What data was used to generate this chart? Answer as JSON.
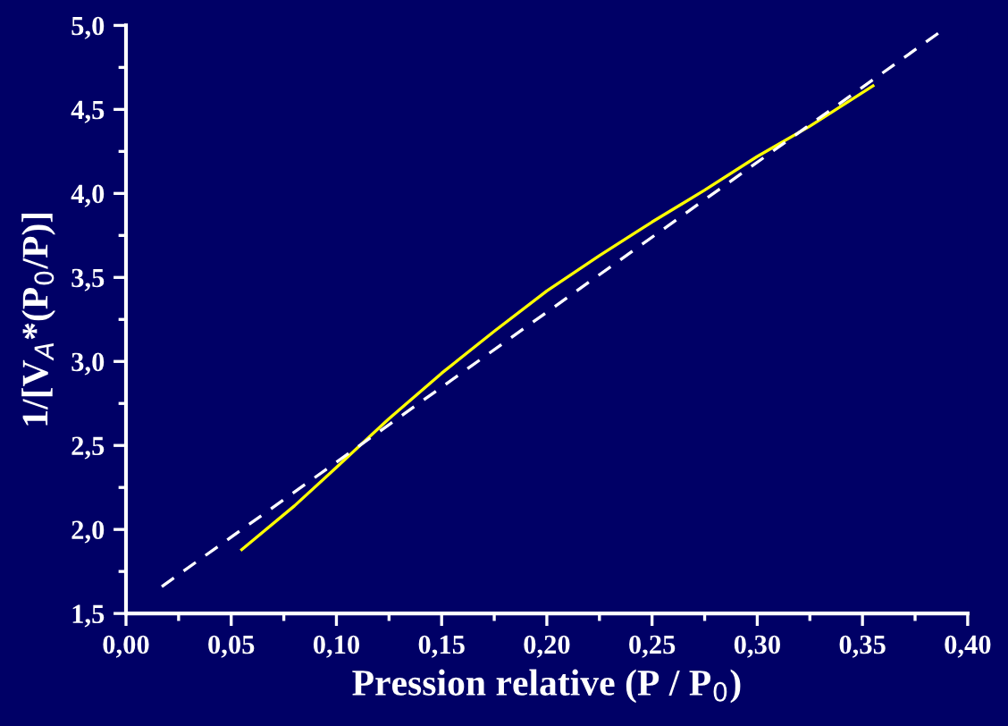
{
  "chart_data": {
    "type": "line",
    "xlabel": "Pression relative (P / P$_{0}$)",
    "ylabel": "1/[V$_{A}$*(P$_{0}$/P)]",
    "xlim": [
      0,
      0.4
    ],
    "ylim": [
      1.5,
      5.0
    ],
    "xticks": [
      {
        "value": 0,
        "label": "0,00"
      },
      {
        "value": 0.05,
        "label": "0,05"
      },
      {
        "value": 0.1,
        "label": "0,10"
      },
      {
        "value": 0.15,
        "label": "0,15"
      },
      {
        "value": 0.2,
        "label": "0,20"
      },
      {
        "value": 0.25,
        "label": "0,25"
      },
      {
        "value": 0.3,
        "label": "0,30"
      },
      {
        "value": 0.35,
        "label": "0,35"
      },
      {
        "value": 0.4,
        "label": "0,40"
      }
    ],
    "yticks": [
      {
        "value": 1.5,
        "label": "1,5"
      },
      {
        "value": 2.0,
        "label": "2,0"
      },
      {
        "value": 2.5,
        "label": "2,5"
      },
      {
        "value": 3.0,
        "label": "3,0"
      },
      {
        "value": 3.5,
        "label": "3,5"
      },
      {
        "value": 4.0,
        "label": "4,0"
      },
      {
        "value": 4.5,
        "label": "4,5"
      },
      {
        "value": 5.0,
        "label": "5,0"
      }
    ],
    "grid": false,
    "legend": false,
    "marker": "none",
    "series": [
      {
        "color": "#ffff00",
        "line_style": "solid",
        "x": [
          0.055,
          0.08,
          0.1,
          0.125,
          0.15,
          0.175,
          0.2,
          0.225,
          0.25,
          0.275,
          0.3,
          0.325,
          0.355
        ],
        "values": [
          1.88,
          2.14,
          2.37,
          2.66,
          2.93,
          3.18,
          3.42,
          3.63,
          3.83,
          4.02,
          4.22,
          4.4,
          4.64
        ]
      },
      {
        "color": "#ffffff",
        "line_style": "dashed",
        "x": [
          0.017,
          0.389
        ],
        "values": [
          1.66,
          4.98
        ]
      }
    ]
  }
}
